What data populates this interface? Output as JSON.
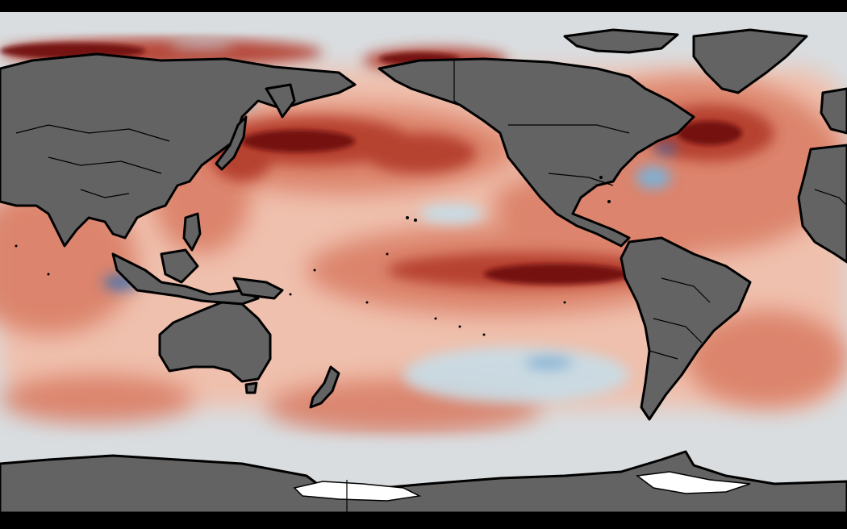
{
  "map": {
    "projection": "equirectangular",
    "center": "pacific",
    "variable_colors": {
      "ocean_neutral": "#d9dde0",
      "warm_light": "#efc0ad",
      "warm_medium": "#d97a62",
      "warm_strong": "#b23a2a",
      "warm_extreme": "#6e0a10",
      "cool_light": "#c6dde8",
      "cool_medium": "#7fb0d3",
      "cool_strong": "#2c6fb6",
      "land": "#636363",
      "ice": "#ffffff",
      "coastline": "#000000"
    },
    "features": [
      "north-pacific-warm-anomaly",
      "equatorial-pacific-warm-tongue",
      "north-atlantic-warm-anomaly",
      "southern-ocean-neutral-band",
      "south-pacific-cool-patches"
    ]
  }
}
